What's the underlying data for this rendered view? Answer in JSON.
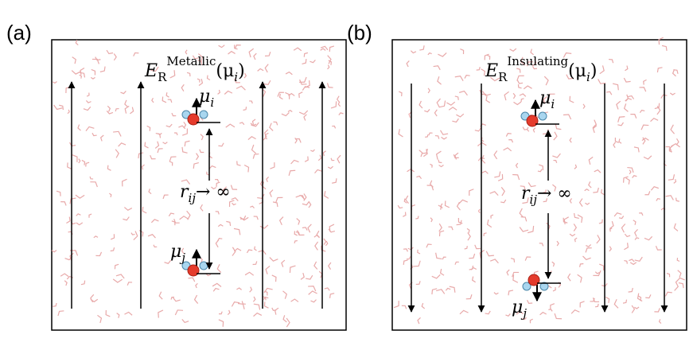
{
  "panels": [
    {
      "label": "(a)",
      "energy": {
        "symbol": "E",
        "subscript": "R",
        "superscript": "Metallic",
        "argument": "(μ",
        "argument_subscript": "i",
        "close": ")"
      },
      "dipole_top": {
        "symbol": "μ",
        "subscript": "i"
      },
      "distance": {
        "symbol": "r",
        "subscript": "ij",
        "relation": "→ ∞"
      },
      "dipole_bottom": {
        "symbol": "μ",
        "subscript": "j"
      }
    },
    {
      "label": "(b)",
      "energy": {
        "symbol": "E",
        "subscript": "R",
        "superscript": "Insulating",
        "argument": "(μ",
        "argument_subscript": "i",
        "close": ")"
      },
      "dipole_top": {
        "symbol": "μ",
        "subscript": "i"
      },
      "distance": {
        "symbol": "r",
        "subscript": "ij",
        "relation": "→ ∞"
      },
      "dipole_bottom": {
        "symbol": "μ",
        "subscript": "j"
      }
    }
  ]
}
